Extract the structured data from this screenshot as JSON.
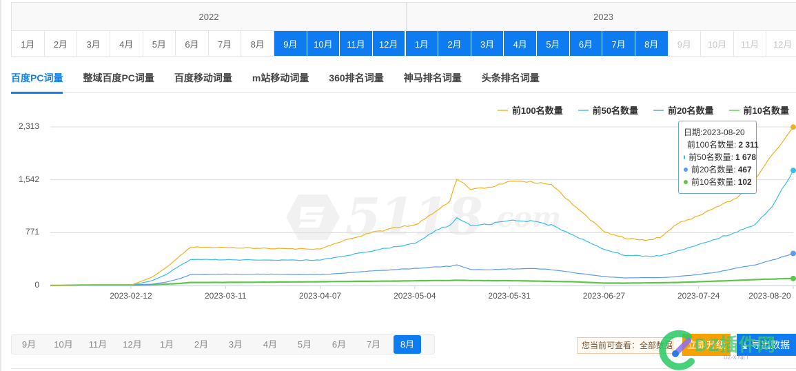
{
  "month_picker": {
    "years": [
      {
        "label": "2022",
        "months": [
          {
            "label": "1月",
            "state": "normal"
          },
          {
            "label": "2月",
            "state": "normal"
          },
          {
            "label": "3月",
            "state": "normal"
          },
          {
            "label": "4月",
            "state": "normal"
          },
          {
            "label": "5月",
            "state": "normal"
          },
          {
            "label": "6月",
            "state": "normal"
          },
          {
            "label": "7月",
            "state": "normal"
          },
          {
            "label": "8月",
            "state": "normal"
          },
          {
            "label": "9月",
            "state": "selected"
          },
          {
            "label": "10月",
            "state": "selected"
          },
          {
            "label": "11月",
            "state": "selected"
          },
          {
            "label": "12月",
            "state": "selected"
          }
        ]
      },
      {
        "label": "2023",
        "months": [
          {
            "label": "1月",
            "state": "selected"
          },
          {
            "label": "2月",
            "state": "selected"
          },
          {
            "label": "3月",
            "state": "selected"
          },
          {
            "label": "4月",
            "state": "selected"
          },
          {
            "label": "5月",
            "state": "selected"
          },
          {
            "label": "6月",
            "state": "selected"
          },
          {
            "label": "7月",
            "state": "selected"
          },
          {
            "label": "8月",
            "state": "selected"
          },
          {
            "label": "9月",
            "state": "disabled"
          },
          {
            "label": "10月",
            "state": "disabled"
          },
          {
            "label": "11月",
            "state": "disabled"
          },
          {
            "label": "12月",
            "state": "disabled"
          }
        ]
      }
    ],
    "selected_color": "#0e7cf0"
  },
  "tabs": [
    {
      "label": "百度PC词量",
      "active": true
    },
    {
      "label": "整域百度PC词量",
      "active": false
    },
    {
      "label": "百度移动词量",
      "active": false
    },
    {
      "label": "m站移动词量",
      "active": false
    },
    {
      "label": "360排名词量",
      "active": false
    },
    {
      "label": "神马排名词量",
      "active": false
    },
    {
      "label": "头条排名词量",
      "active": false
    }
  ],
  "watermark": {
    "big": "5118",
    "small": ".com"
  },
  "tooltip": {
    "date_label": "日期:2023-08-20",
    "rows": [
      {
        "label": "前100名数量:",
        "value": "2 311",
        "color": "#f2b01e"
      },
      {
        "label": "前50名数量:",
        "value": "1 678",
        "color": "#38bde8"
      },
      {
        "label": "前20名数量:",
        "value": "467",
        "color": "#5b9bf0"
      },
      {
        "label": "前10名数量:",
        "value": "102",
        "color": "#5fc44a"
      }
    ]
  },
  "bottom_strip": {
    "months": [
      "9月",
      "10月",
      "11月",
      "12月",
      "1月",
      "2月",
      "3月",
      "4月",
      "5月",
      "6月",
      "7月",
      "8月"
    ],
    "selected_index": 11
  },
  "notice": {
    "text": "您当前可查看：全部数据"
  },
  "buttons": {
    "upgrade": "立即升级",
    "export": "导出数据",
    "export_icon": "⤓"
  },
  "overlay_watermark": {
    "text": "DZ插件网",
    "sub": "DZ-X.NET"
  },
  "chart_data": {
    "type": "line",
    "title": "",
    "xlabel": "",
    "ylabel": "",
    "ylim": [
      0,
      2313
    ],
    "yticks": [
      "0",
      "771",
      "1,542",
      "2,313"
    ],
    "ytick_values": [
      0,
      771,
      1542,
      2313
    ],
    "xticks": [
      "2023-02-12",
      "2023-03-11",
      "2023-04-07",
      "2023-05-04",
      "2023-05-31",
      "2023-06-27",
      "2023-07-24",
      "2023-08-20"
    ],
    "x_start": "2023-01-20",
    "x_end": "2023-08-20",
    "grid": true,
    "legend_position": "top-right",
    "legend": [
      "前100名数量",
      "前50名数量",
      "前20名数量",
      "前10名数量"
    ],
    "x": [
      "2023-01-20",
      "2023-02-01",
      "2023-02-12",
      "2023-02-18",
      "2023-02-22",
      "2023-02-26",
      "2023-03-01",
      "2023-03-11",
      "2023-03-25",
      "2023-04-07",
      "2023-04-14",
      "2023-04-21",
      "2023-04-28",
      "2023-05-04",
      "2023-05-10",
      "2023-05-14",
      "2023-05-16",
      "2023-05-20",
      "2023-05-26",
      "2023-05-31",
      "2023-06-06",
      "2023-06-12",
      "2023-06-18",
      "2023-06-27",
      "2023-07-03",
      "2023-07-09",
      "2023-07-13",
      "2023-07-18",
      "2023-07-24",
      "2023-07-30",
      "2023-08-04",
      "2023-08-09",
      "2023-08-14",
      "2023-08-20"
    ],
    "series": [
      {
        "name": "前100名数量",
        "color": "#f2b01e",
        "values": [
          0,
          5,
          5,
          120,
          260,
          430,
          560,
          550,
          540,
          530,
          660,
          760,
          840,
          880,
          1070,
          1230,
          1560,
          1400,
          1440,
          1520,
          1510,
          1480,
          1180,
          790,
          690,
          660,
          700,
          900,
          1020,
          1160,
          1280,
          1550,
          1900,
          2311
        ]
      },
      {
        "name": "前50名数量",
        "color": "#38bde8",
        "values": [
          0,
          4,
          4,
          70,
          160,
          290,
          380,
          375,
          370,
          370,
          430,
          500,
          560,
          620,
          800,
          880,
          980,
          880,
          900,
          950,
          940,
          880,
          740,
          530,
          440,
          430,
          430,
          500,
          600,
          700,
          780,
          880,
          1150,
          1678
        ]
      },
      {
        "name": "前20名数量",
        "color": "#5b9bf0",
        "values": [
          0,
          3,
          3,
          20,
          50,
          100,
          160,
          165,
          165,
          160,
          180,
          210,
          230,
          250,
          270,
          280,
          300,
          230,
          230,
          240,
          250,
          230,
          190,
          130,
          110,
          115,
          115,
          130,
          160,
          200,
          260,
          300,
          370,
          467
        ]
      },
      {
        "name": "前10名数量",
        "color": "#5fc44a",
        "values": [
          0,
          8,
          8,
          12,
          20,
          30,
          45,
          45,
          50,
          55,
          60,
          62,
          65,
          68,
          72,
          72,
          78,
          72,
          70,
          70,
          65,
          60,
          55,
          35,
          35,
          38,
          40,
          45,
          55,
          65,
          75,
          85,
          95,
          102
        ]
      }
    ]
  }
}
